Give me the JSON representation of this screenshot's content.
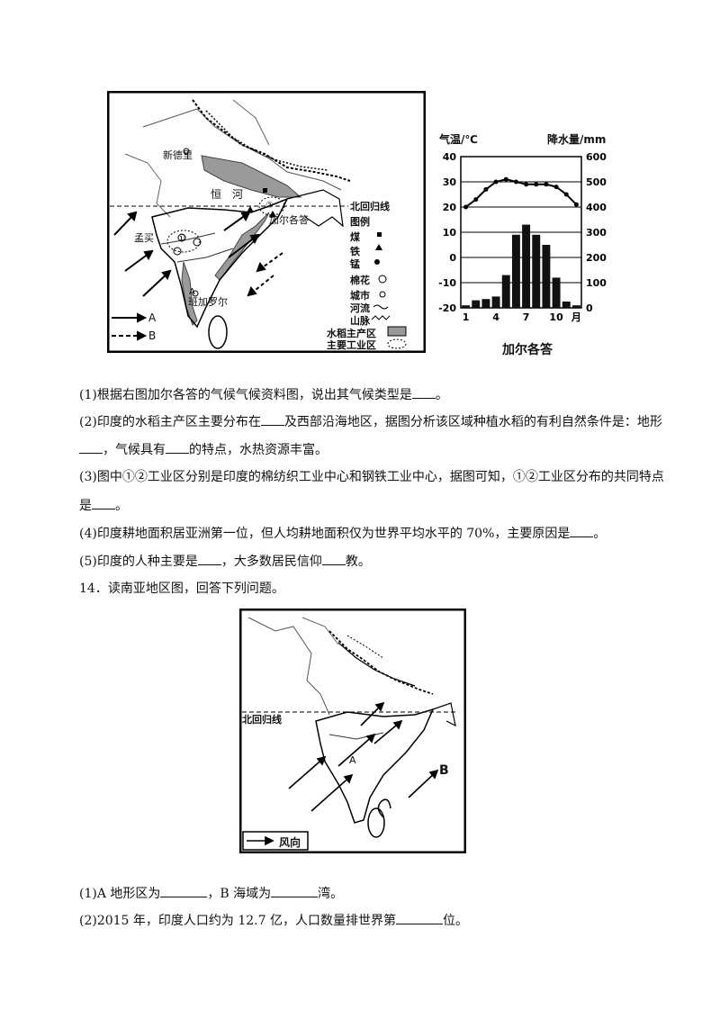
{
  "map1": {
    "cities": {
      "delhi": "新德里",
      "kolkata": "加尔各答",
      "mumbai": "孟买",
      "bangalore": "班加罗尔"
    },
    "river": "恒　河",
    "tropic": "北回归线",
    "legend_title": "图例",
    "legend_items": [
      "煤",
      "铁",
      "锰",
      "棉花",
      "城市",
      "河流",
      "山脉",
      "水稻主产区",
      "主要工业区"
    ],
    "arrow_a": "A",
    "arrow_b": "B",
    "marker_1": "①",
    "marker_2": "②",
    "label_a": "A"
  },
  "climate_chart": {
    "title": "加尔各答",
    "y_left_label": "气温/℃",
    "y_right_label": "降水量/mm"
  },
  "chart_data": {
    "type": "bar",
    "title": "加尔各答",
    "x": [
      1,
      2,
      3,
      4,
      5,
      6,
      7,
      8,
      9,
      10,
      11,
      12
    ],
    "x_tick_labels": [
      "1",
      "4",
      "7",
      "10",
      "月"
    ],
    "series": [
      {
        "name": "气温/℃",
        "type": "line",
        "values": [
          20,
          23,
          27,
          30,
          31,
          30,
          29,
          29,
          29,
          28,
          25,
          21
        ]
      },
      {
        "name": "降水量/mm",
        "type": "bar",
        "values": [
          10,
          30,
          35,
          45,
          130,
          290,
          330,
          290,
          250,
          120,
          25,
          10
        ]
      }
    ],
    "y_left_ticks": [
      "40",
      "30",
      "20",
      "10",
      "0",
      "-10",
      "-20"
    ],
    "y_right_ticks": [
      "600",
      "500",
      "400",
      "300",
      "200",
      "100",
      "0"
    ],
    "ylim_left": [
      -20,
      40
    ],
    "ylim_right": [
      0,
      600
    ],
    "grid": true
  },
  "questions13": {
    "q1_a": "(1)根据右图加尔各答的气候气候资料图，说出其气候类型是",
    "q1_b": "。",
    "q2_a": "(2)印度的水稻主产区主要分布在",
    "q2_b": "及西部沿海地区，据图分析该区域种植水稻的有利自然条件是：地形",
    "q2_c": "，气候具有",
    "q2_d": "的特点，水热资源丰富。",
    "q3_a": "(3)图中①②工业区分别是印度的棉纺织工业中心和钢铁工业中心，据图可知，①②工业区分布的共同特点",
    "q3_b": "是",
    "q3_c": "。",
    "q4_a": "(4)印度耕地面积居亚洲第一位，但人均耕地面积仅为世界平均水平的 70%，主要原因是",
    "q4_b": "。",
    "q5_a": "(5)印度的人种主要是",
    "q5_b": "，大多数居民信仰",
    "q5_c": "教。"
  },
  "q14": {
    "heading": "14．读南亚地区图，回答下列问题。",
    "map_tropic": "北回归线",
    "map_a": "A",
    "map_b": "B",
    "legend_wind": "风向",
    "q1_a": "(1)A 地形区为",
    "q1_b": "，B 海域为",
    "q1_c": "湾。",
    "q2_a": "(2)2015 年，印度人口约为 12.7 亿，人口数量排世界第",
    "q2_b": "位。"
  }
}
